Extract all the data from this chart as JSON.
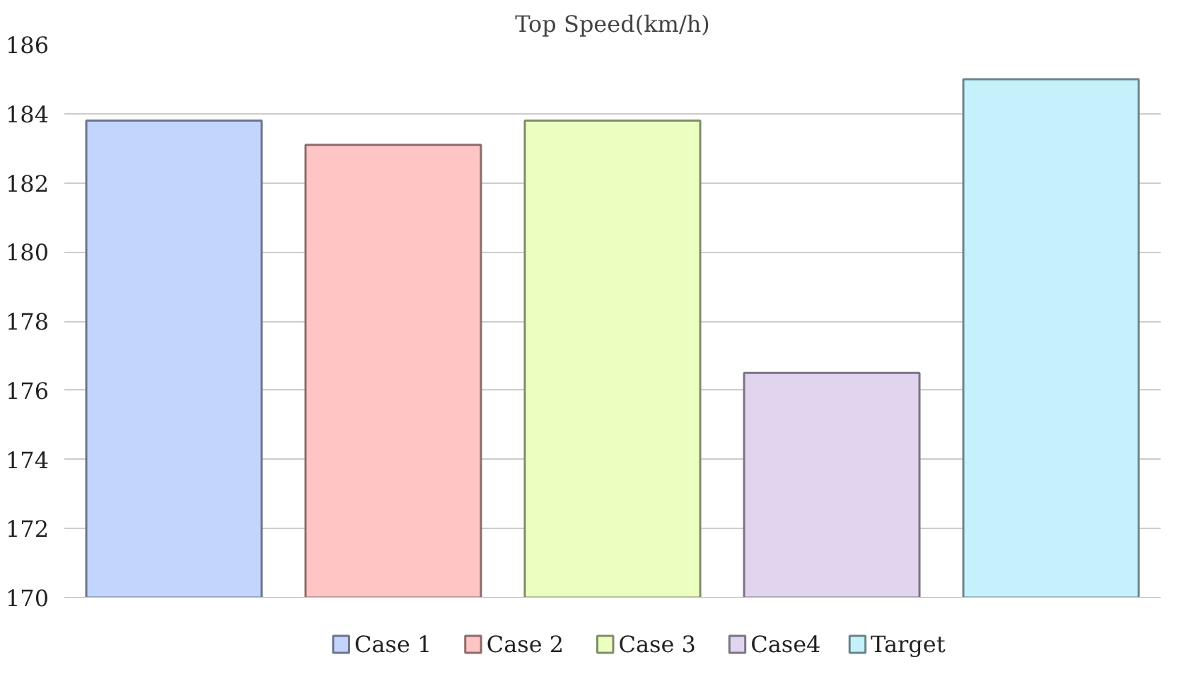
{
  "chart_data": {
    "type": "bar",
    "title": "Top Speed(km/h)",
    "categories": [
      null
    ],
    "series": [
      {
        "name": "Case 1",
        "color": "#c3d5fc",
        "values": [
          183.8
        ]
      },
      {
        "name": "Case 2",
        "color": "#ffc4c4",
        "values": [
          183.1
        ]
      },
      {
        "name": "Case 3",
        "color": "#eaffc0",
        "values": [
          183.8
        ]
      },
      {
        "name": "Case4",
        "color": "#e0d4ef",
        "values": [
          176.5
        ]
      },
      {
        "name": "Target",
        "color": "#c4f1fb",
        "values": [
          185.0
        ]
      }
    ],
    "ylim": [
      170,
      186
    ],
    "yticks": [
      170,
      172,
      174,
      176,
      178,
      180,
      182,
      184,
      186
    ],
    "grid": "y",
    "legend": "bottom"
  }
}
